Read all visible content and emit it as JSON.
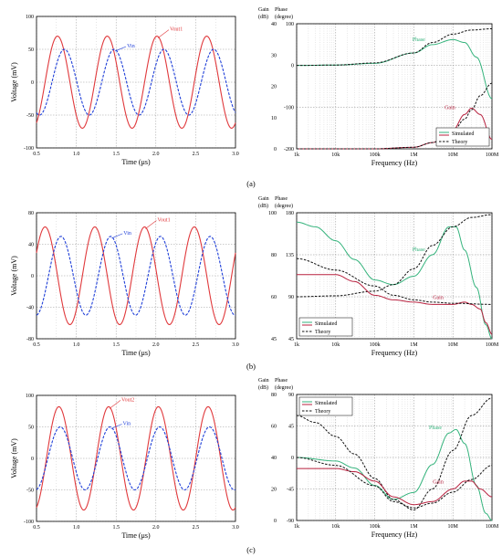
{
  "figure": {
    "panel_labels": [
      "(a)",
      "(b)",
      "(c)"
    ]
  },
  "colors": {
    "vin": "#1f3fd8",
    "vout": "#e0393c",
    "gain_sim": "#b8213f",
    "phase_sim": "#34b37c",
    "theory": "#111111"
  },
  "chart_data": [
    {
      "panel": "(a)",
      "type": "line",
      "xlabel": "Time (μs)",
      "ylabel": "Voltage (mV)",
      "xlim": [
        0.5,
        3.0
      ],
      "ylim": [
        -100,
        100
      ],
      "xticks": [
        "0.5",
        "1.0",
        "1.5",
        "2.0",
        "2.5",
        "3.0"
      ],
      "yticks": [
        "100",
        "50",
        "0",
        "-50",
        "-100"
      ],
      "series": [
        {
          "name": "Vout1",
          "amplitude": 70,
          "period": 0.625,
          "phase_deg": 10,
          "style": "solid"
        },
        {
          "name": "Vin",
          "amplitude": 50,
          "period": 0.625,
          "phase_deg": -40,
          "style": "dashed"
        }
      ],
      "annotations": [
        {
          "text": "Vout1",
          "series": "Vout1"
        },
        {
          "text": "Vin",
          "series": "Vin"
        }
      ]
    },
    {
      "panel": "(a)",
      "type": "line",
      "xlabel": "Frequency (Hz)",
      "y_left_label": [
        "Gain",
        "(dB)"
      ],
      "y_right_label": [
        "Phase",
        "(degree)"
      ],
      "xscale": "log",
      "xlim": [
        1000,
        100000000
      ],
      "xticks": [
        "1k",
        "10k",
        "100k",
        "1M",
        "10M",
        "100M"
      ],
      "ylim_gain": [
        0,
        40
      ],
      "yticks_gain": [
        "40",
        "30",
        "20",
        "10",
        "0"
      ],
      "ylim_phase": [
        -200,
        100
      ],
      "yticks_phase": [
        "100",
        "0",
        "-100",
        "-200"
      ],
      "legend": [
        "Simulated",
        "Theory"
      ],
      "legend_position": "bottom-right",
      "series": [
        {
          "name": "Phase",
          "axis": "phase",
          "kind": "sim",
          "points": [
            [
              1000,
              0
            ],
            [
              10000,
              1
            ],
            [
              100000,
              5
            ],
            [
              1000000,
              30
            ],
            [
              3000000,
              50
            ],
            [
              10000000,
              62
            ],
            [
              20000000,
              55
            ],
            [
              40000000,
              20
            ],
            [
              100000000,
              -80
            ]
          ]
        },
        {
          "name": "Phase",
          "axis": "phase",
          "kind": "theory",
          "points": [
            [
              1000,
              0
            ],
            [
              10000,
              1
            ],
            [
              100000,
              6
            ],
            [
              1000000,
              30
            ],
            [
              3000000,
              55
            ],
            [
              10000000,
              75
            ],
            [
              30000000,
              85
            ],
            [
              100000000,
              88
            ]
          ]
        },
        {
          "name": "Gain",
          "axis": "gain",
          "kind": "sim",
          "points": [
            [
              1000,
              0
            ],
            [
              100000,
              0
            ],
            [
              1000000,
              0.5
            ],
            [
              3000000,
              2
            ],
            [
              10000000,
              6
            ],
            [
              20000000,
              11
            ],
            [
              30000000,
              13
            ],
            [
              50000000,
              11
            ],
            [
              100000000,
              3
            ]
          ]
        },
        {
          "name": "Gain",
          "axis": "gain",
          "kind": "theory",
          "points": [
            [
              1000,
              0
            ],
            [
              100000,
              0
            ],
            [
              1000000,
              0.5
            ],
            [
              3000000,
              2
            ],
            [
              10000000,
              5.5
            ],
            [
              20000000,
              9.5
            ],
            [
              30000000,
              12.5
            ],
            [
              50000000,
              17
            ],
            [
              100000000,
              21
            ]
          ]
        }
      ],
      "annotations": [
        {
          "text": "Phase"
        },
        {
          "text": "Gain"
        }
      ]
    },
    {
      "panel": "(b)",
      "type": "line",
      "xlabel": "Time (μs)",
      "ylabel": "Voltage (mV)",
      "xlim": [
        0.5,
        3.0
      ],
      "ylim": [
        -80,
        80
      ],
      "xticks": [
        "0.5",
        "1.0",
        "1.5",
        "2.0",
        "2.5",
        "3.0"
      ],
      "yticks": [
        "80",
        "40",
        "0",
        "-40",
        "-80"
      ],
      "series": [
        {
          "name": "Vout1",
          "amplitude": 62,
          "period": 0.625,
          "phase_deg": 100,
          "style": "solid"
        },
        {
          "name": "Vin",
          "amplitude": 50,
          "period": 0.625,
          "phase_deg": -15,
          "style": "dashed"
        }
      ],
      "annotations": [
        {
          "text": "Vout1",
          "series": "Vout1"
        },
        {
          "text": "Vin",
          "series": "Vin"
        }
      ]
    },
    {
      "panel": "(b)",
      "type": "line",
      "xlabel": "Frequency (Hz)",
      "y_left_label": [
        "Gain",
        "(dB)"
      ],
      "y_right_label": [
        "Phase",
        "(degree)"
      ],
      "xscale": "log",
      "xlim": [
        1000,
        100000000
      ],
      "xticks": [
        "1k",
        "10k",
        "100k",
        "1M",
        "10M",
        "100M"
      ],
      "ylim_gain": [
        45,
        100
      ],
      "yticks_gain": [
        "100",
        "80",
        "60",
        "45"
      ],
      "ylim_phase": [
        45,
        180
      ],
      "yticks_phase": [
        "180",
        "135",
        "90",
        "45"
      ],
      "legend": [
        "Simulated",
        "Theory"
      ],
      "legend_position": "bottom-left",
      "series": [
        {
          "name": "Phase",
          "axis": "phase",
          "kind": "sim",
          "points": [
            [
              1000,
              170
            ],
            [
              3000,
              165
            ],
            [
              10000,
              150
            ],
            [
              30000,
              130
            ],
            [
              100000,
              108
            ],
            [
              300000,
              103
            ],
            [
              1000000,
              112
            ],
            [
              3000000,
              135
            ],
            [
              8000000,
              165
            ],
            [
              12000000,
              165
            ],
            [
              20000000,
              140
            ],
            [
              40000000,
              100
            ],
            [
              70000000,
              60
            ],
            [
              100000000,
              45
            ]
          ]
        },
        {
          "name": "Phase",
          "axis": "phase",
          "kind": "theory",
          "points": [
            [
              1000,
              90
            ],
            [
              10000,
              91
            ],
            [
              100000,
              96
            ],
            [
              300000,
              103
            ],
            [
              1000000,
              120
            ],
            [
              3000000,
              145
            ],
            [
              10000000,
              165
            ],
            [
              30000000,
              175
            ],
            [
              100000000,
              178
            ]
          ]
        },
        {
          "name": "Gain",
          "axis": "gain",
          "kind": "sim",
          "points": [
            [
              1000,
              73
            ],
            [
              10000,
              73
            ],
            [
              30000,
              70
            ],
            [
              100000,
              64
            ],
            [
              300000,
              62
            ],
            [
              1000000,
              61
            ],
            [
              3000000,
              60
            ],
            [
              10000000,
              60
            ],
            [
              20000000,
              61
            ],
            [
              30000000,
              60
            ],
            [
              50000000,
              58
            ],
            [
              70000000,
              52
            ],
            [
              100000000,
              47
            ]
          ]
        },
        {
          "name": "Gain",
          "axis": "gain",
          "kind": "theory",
          "points": [
            [
              1000,
              80
            ],
            [
              10000,
              75
            ],
            [
              100000,
              68
            ],
            [
              300000,
              64
            ],
            [
              1000000,
              62
            ],
            [
              3000000,
              61
            ],
            [
              10000000,
              60.5
            ],
            [
              100000000,
              60
            ]
          ]
        }
      ],
      "annotations": [
        {
          "text": "Phase"
        },
        {
          "text": "Gain"
        }
      ]
    },
    {
      "panel": "(c)",
      "type": "line",
      "xlabel": "Time (μs)",
      "ylabel": "Voltage (mV)",
      "xlim": [
        0.5,
        3.0
      ],
      "ylim": [
        -100,
        100
      ],
      "xticks": [
        "0.5",
        "1.0",
        "1.5",
        "2.0",
        "2.5",
        "3.0"
      ],
      "yticks": [
        "100",
        "50",
        "0",
        "-50",
        "-100"
      ],
      "series": [
        {
          "name": "Vout2",
          "amplitude": 82,
          "period": 0.625,
          "phase_deg": 0,
          "style": "solid"
        },
        {
          "name": "Vin",
          "amplitude": 50,
          "period": 0.625,
          "phase_deg": -10,
          "style": "dashed"
        }
      ],
      "annotations": [
        {
          "text": "Vout2",
          "series": "Vout2"
        },
        {
          "text": "Vin",
          "series": "Vin"
        }
      ]
    },
    {
      "panel": "(c)",
      "type": "line",
      "xlabel": "Frequency (Hz)",
      "y_left_label": [
        "Gain",
        "(dB)"
      ],
      "y_right_label": [
        "Phase",
        "(degree)"
      ],
      "xscale": "log",
      "xlim": [
        1000,
        100000000
      ],
      "xticks": [
        "1k",
        "10k",
        "100k",
        "1M",
        "10M",
        "100M"
      ],
      "ylim_gain": [
        0,
        80
      ],
      "yticks_gain": [
        "80",
        "60",
        "40",
        "20",
        "0"
      ],
      "ylim_phase": [
        -90,
        90
      ],
      "yticks_phase": [
        "90",
        "45",
        "0",
        "-45",
        "-90"
      ],
      "legend": [
        "Simulated",
        "Theory"
      ],
      "legend_position": "top-left",
      "series": [
        {
          "name": "Phase",
          "axis": "phase",
          "kind": "sim",
          "points": [
            [
              1000,
              0
            ],
            [
              10000,
              -5
            ],
            [
              30000,
              -15
            ],
            [
              100000,
              -40
            ],
            [
              300000,
              -60
            ],
            [
              1000000,
              -50
            ],
            [
              3000000,
              -10
            ],
            [
              8000000,
              35
            ],
            [
              12000000,
              40
            ],
            [
              20000000,
              20
            ],
            [
              40000000,
              -40
            ],
            [
              70000000,
              -80
            ],
            [
              100000000,
              -90
            ]
          ]
        },
        {
          "name": "Phase",
          "axis": "phase",
          "kind": "theory",
          "points": [
            [
              1000,
              60
            ],
            [
              3000,
              50
            ],
            [
              10000,
              30
            ],
            [
              30000,
              5
            ],
            [
              100000,
              -30
            ],
            [
              300000,
              -60
            ],
            [
              1000000,
              -75
            ],
            [
              3000000,
              -45
            ],
            [
              10000000,
              10
            ],
            [
              30000000,
              60
            ],
            [
              100000000,
              85
            ]
          ]
        },
        {
          "name": "Gain",
          "axis": "gain",
          "kind": "sim",
          "points": [
            [
              1000,
              33
            ],
            [
              10000,
              33
            ],
            [
              30000,
              31
            ],
            [
              100000,
              25
            ],
            [
              300000,
              15
            ],
            [
              1000000,
              10
            ],
            [
              3000000,
              12
            ],
            [
              10000000,
              20
            ],
            [
              20000000,
              25
            ],
            [
              30000000,
              25
            ],
            [
              50000000,
              20
            ],
            [
              100000000,
              15
            ]
          ]
        },
        {
          "name": "Gain",
          "axis": "gain",
          "kind": "theory",
          "points": [
            [
              1000,
              40
            ],
            [
              10000,
              35
            ],
            [
              100000,
              22
            ],
            [
              300000,
              12
            ],
            [
              1000000,
              8
            ],
            [
              3000000,
              11
            ],
            [
              10000000,
              18
            ],
            [
              30000000,
              26
            ],
            [
              100000000,
              35
            ]
          ]
        }
      ],
      "annotations": [
        {
          "text": "Phase"
        },
        {
          "text": "Gain"
        }
      ]
    }
  ]
}
